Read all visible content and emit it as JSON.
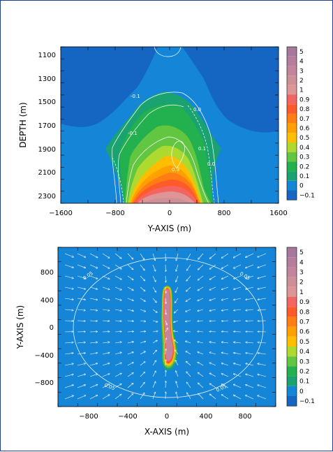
{
  "chart_data": [
    {
      "type": "heatmap",
      "title": "",
      "xlabel": "Y-AXIS (m)",
      "ylabel": "DEPTH (m)",
      "xlim": [
        -1600,
        1600
      ],
      "ylim": [
        2400,
        1000
      ],
      "x_ticks": [
        "−1600",
        "−800",
        "0",
        "800",
        "1600"
      ],
      "y_ticks": [
        "1100",
        "1300",
        "1500",
        "1700",
        "1900",
        "2100",
        "2300"
      ],
      "colorbar": {
        "levels": [
          "5",
          "4",
          "3",
          "2",
          "1",
          "0.9",
          "0.8",
          "0.7",
          "0.6",
          "0.5",
          "0.4",
          "0.3",
          "0.2",
          "0.1",
          "0",
          "−0.1"
        ],
        "colors": [
          "#a7789b",
          "#b57d9e",
          "#c3859c",
          "#cf8f99",
          "#dd9595",
          "#f26560",
          "#ff5a2c",
          "#ff7d12",
          "#ff9f00",
          "#ffbf00",
          "#aeda30",
          "#62c640",
          "#23b04e",
          "#1aa370",
          "#1585d7",
          "#1566c2"
        ]
      },
      "contour_labels": [
        "-0.1",
        "0.0",
        "0.1",
        "0.3",
        "0.0",
        "-0.1"
      ]
    },
    {
      "type": "heatmap",
      "title": "",
      "xlabel": "X-AXIS (m)",
      "ylabel": "Y-AXIS (m)",
      "xlim": [
        -1100,
        1100
      ],
      "ylim": [
        -1100,
        1100
      ],
      "x_ticks": [
        "−800",
        "−400",
        "0",
        "400",
        "800"
      ],
      "y_ticks": [
        "800",
        "400",
        "0",
        "−400",
        "−800"
      ],
      "colorbar": {
        "levels": [
          "5",
          "4",
          "3",
          "2",
          "1",
          "0.9",
          "0.8",
          "0.7",
          "0.6",
          "0.5",
          "0.4",
          "0.3",
          "0.2",
          "0.1",
          "0",
          "−0.1"
        ],
        "colors": [
          "#a7789b",
          "#b57d9e",
          "#c3859c",
          "#cf8f99",
          "#dd9595",
          "#f26560",
          "#ff5a2c",
          "#ff7d12",
          "#ff9f00",
          "#ffbf00",
          "#aeda30",
          "#62c640",
          "#23b04e",
          "#1aa370",
          "#1585d7",
          "#1566c2"
        ]
      },
      "contour_labels": [
        "0.05",
        "0.05",
        "0.05",
        "0.05"
      ]
    }
  ]
}
